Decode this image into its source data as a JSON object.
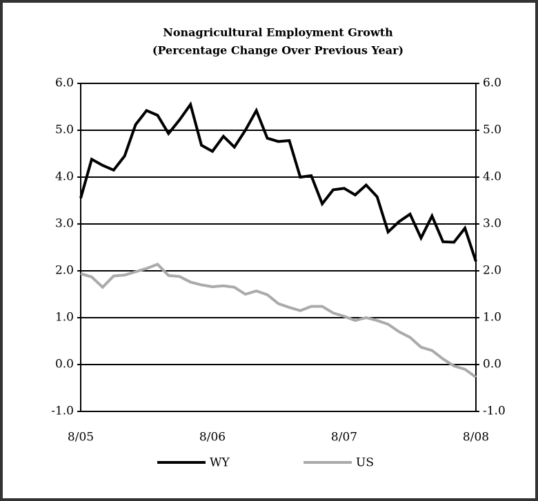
{
  "chart_data": {
    "type": "line",
    "title": "Nonagricultural Employment Growth",
    "subtitle": "(Percentage Change Over Previous Year)",
    "categories": [
      "8/05",
      null,
      null,
      null,
      null,
      null,
      null,
      null,
      null,
      null,
      null,
      null,
      "8/06",
      null,
      null,
      null,
      null,
      null,
      null,
      null,
      null,
      null,
      null,
      null,
      "8/07",
      null,
      null,
      null,
      null,
      null,
      null,
      null,
      null,
      null,
      null,
      null,
      "8/08"
    ],
    "series": [
      {
        "name": "WY",
        "color": "#000000",
        "values": [
          3.55,
          4.38,
          4.25,
          4.15,
          4.45,
          5.12,
          5.42,
          5.32,
          4.93,
          5.22,
          5.55,
          4.68,
          4.55,
          4.87,
          4.64,
          5.0,
          5.42,
          4.83,
          4.76,
          4.78,
          4.0,
          4.03,
          3.43,
          3.73,
          3.76,
          3.62,
          3.83,
          3.58,
          2.83,
          3.05,
          3.21,
          2.7,
          3.17,
          2.62,
          2.61,
          2.91,
          2.2
        ]
      },
      {
        "name": "US",
        "color": "#aaaaaa",
        "values": [
          1.94,
          1.87,
          1.65,
          1.89,
          1.91,
          1.98,
          2.05,
          2.14,
          1.9,
          1.88,
          1.76,
          1.7,
          1.66,
          1.68,
          1.65,
          1.5,
          1.57,
          1.49,
          1.3,
          1.22,
          1.15,
          1.24,
          1.24,
          1.1,
          1.03,
          0.94,
          1.0,
          0.94,
          0.86,
          0.7,
          0.58,
          0.37,
          0.3,
          0.12,
          -0.03,
          -0.1,
          -0.27
        ]
      }
    ],
    "ylim": [
      -1,
      6
    ],
    "yticks": [
      {
        "value": -1,
        "label": "-1.0"
      },
      {
        "value": 0,
        "label": "0.0"
      },
      {
        "value": 1,
        "label": "1.0"
      },
      {
        "value": 2,
        "label": "2.0"
      },
      {
        "value": 3,
        "label": "3.0"
      },
      {
        "value": 4,
        "label": "4.0"
      },
      {
        "value": 5,
        "label": "5.0"
      },
      {
        "value": 6,
        "label": "6.0"
      }
    ],
    "y2lim": [
      -1,
      6
    ],
    "y2ticks": [
      {
        "value": -1,
        "label": "-1.0"
      },
      {
        "value": 0,
        "label": "0.0"
      },
      {
        "value": 1,
        "label": "1.0"
      },
      {
        "value": 2,
        "label": "2.0"
      },
      {
        "value": 3,
        "label": "3.0"
      },
      {
        "value": 4,
        "label": "4.0"
      },
      {
        "value": 5,
        "label": "5.0"
      },
      {
        "value": 6,
        "label": "6.0"
      }
    ],
    "grid": true,
    "legend": "bottom"
  }
}
